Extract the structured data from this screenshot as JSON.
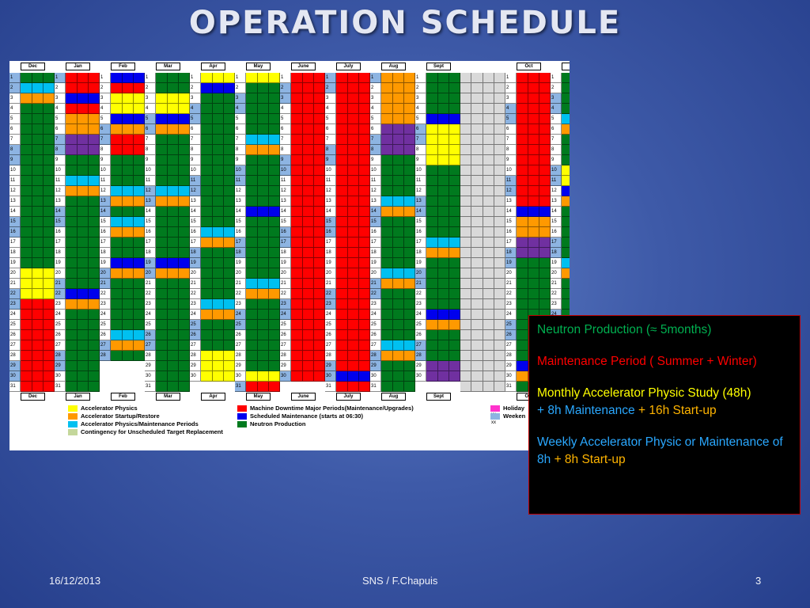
{
  "slide": {
    "title": "OPERATION SCHEDULE",
    "footer_date": "16/12/2013",
    "footer_center": "SNS / F.Chapuis",
    "page_number": "3"
  },
  "schedule": {
    "months_top": [
      "Dec",
      "Jan",
      "Feb",
      "Mar",
      "Apr",
      "May",
      "June",
      "July",
      "Aug",
      "Sept",
      "",
      "Oct",
      "Nov"
    ],
    "months_bottom": [
      "Dec",
      "Jan",
      "Feb",
      "Mar",
      "Apr",
      "May",
      "June",
      "July",
      "Aug",
      "Sept",
      "",
      "Oct",
      "Nov"
    ],
    "month_days": [
      31,
      31,
      28,
      31,
      30,
      31,
      30,
      31,
      31,
      30,
      0,
      31,
      30
    ],
    "colors": {
      "P": "#007a1e",
      "R": "#ff0000",
      "Y": "#ffff00",
      "O": "#ff9900",
      "C": "#00c0f0",
      "B": "#0000ee",
      "V": "#7030a0",
      "H": "#ff33cc",
      "W": "#8db4e2",
      "N": "#ffffff",
      "K": "#c4d79b",
      "G": "#d9d9d9"
    },
    "overrides": [
      "0:2:C",
      "0:3:O",
      "0:20:Y",
      "0:21:Y",
      "0:22:Y",
      "0:23:R",
      "0:24:R",
      "0:25:R",
      "0:26:R",
      "0:27:R",
      "0:28:R",
      "0:29:R",
      "0:30:R",
      "0:31:R",
      "1:1:R",
      "1:2:R",
      "1:3:B",
      "1:4:R",
      "1:5:O",
      "1:6:O",
      "1:7:V",
      "1:8:V",
      "1:11:C",
      "1:12:O",
      "1:22:B",
      "1:23:O",
      "2:1:B",
      "2:2:R",
      "2:3:Y",
      "2:4:Y",
      "2:5:B",
      "2:6:O",
      "2:7:R",
      "2:8:R",
      "2:12:C",
      "2:13:O",
      "2:15:C",
      "2:16:O",
      "2:19:B",
      "2:20:O",
      "2:26:C",
      "2:27:O",
      "3:3:Y",
      "3:4:Y",
      "3:5:B",
      "3:6:O",
      "3:12:C",
      "3:13:O",
      "3:19:B",
      "3:20:O",
      "4:1:Y",
      "4:2:B",
      "4:16:C",
      "4:17:O",
      "4:23:C",
      "4:24:O",
      "4:28:Y",
      "4:29:Y",
      "4:30:Y",
      "5:1:Y",
      "5:7:C",
      "5:8:O",
      "5:14:B",
      "5:21:C",
      "5:22:O",
      "5:30:Y",
      "5:31:R",
      "6:1:R",
      "6:2:R",
      "6:3:R",
      "6:4:R",
      "6:5:R",
      "6:6:R",
      "6:7:R",
      "6:8:R",
      "6:9:R",
      "6:10:R",
      "6:11:R",
      "6:12:R",
      "6:13:R",
      "6:14:R",
      "6:15:R",
      "6:16:R",
      "6:17:R",
      "6:18:R",
      "6:19:R",
      "6:20:R",
      "6:21:R",
      "6:22:R",
      "6:23:R",
      "6:24:R",
      "6:25:R",
      "6:26:R",
      "6:27:R",
      "6:28:R",
      "6:29:R",
      "6:30:R",
      "7:1:R",
      "7:2:R",
      "7:3:R",
      "7:4:R",
      "7:5:R",
      "7:6:R",
      "7:7:R",
      "7:8:R",
      "7:9:R",
      "7:10:R",
      "7:11:R",
      "7:12:R",
      "7:13:R",
      "7:14:R",
      "7:15:R",
      "7:16:R",
      "7:17:R",
      "7:18:R",
      "7:19:R",
      "7:20:R",
      "7:21:R",
      "7:22:R",
      "7:23:R",
      "7:24:R",
      "7:25:R",
      "7:26:R",
      "7:27:R",
      "7:28:R",
      "7:29:R",
      "7:30:B",
      "7:31:R",
      "8:1:O",
      "8:2:O",
      "8:3:O",
      "8:4:O",
      "8:5:O",
      "8:6:V",
      "8:7:V",
      "8:8:V",
      "8:13:C",
      "8:14:O",
      "8:20:C",
      "8:21:O",
      "8:27:C",
      "8:28:O",
      "9:5:B",
      "9:6:Y",
      "9:7:Y",
      "9:8:Y",
      "9:9:Y",
      "9:17:C",
      "9:18:O",
      "9:24:B",
      "9:25:O",
      "9:29:V",
      "9:30:V",
      "11:1:R",
      "11:2:R",
      "11:3:R",
      "11:4:R",
      "11:5:R",
      "11:6:R",
      "11:7:R",
      "11:8:R",
      "11:9:R",
      "11:10:R",
      "11:11:R",
      "11:12:R",
      "11:13:R",
      "11:14:B",
      "11:15:O",
      "11:16:O",
      "11:17:V",
      "11:18:V",
      "11:29:B",
      "11:30:O",
      "12:5:C",
      "12:6:O",
      "12:10:Y",
      "12:11:Y",
      "12:12:B",
      "12:13:O",
      "12:19:C",
      "12:20:O"
    ],
    "legend": [
      {
        "color": "Y",
        "label": "Accelerator Physics"
      },
      {
        "color": "O",
        "label": "Accelerator Startup/Restore"
      },
      {
        "color": "C",
        "label": "Accelerator Physics/Maintenance Periods"
      },
      {
        "color": "K",
        "label": "Contingency for Unscheduled Target Replacement"
      },
      {
        "color": "R",
        "label": "Machine Downtime Major Periods(Maintenance/Upgrades)"
      },
      {
        "color": "B",
        "label": "Scheduled Maintenance (starts at 06:30)"
      },
      {
        "color": "P",
        "label": "Neutron Production"
      },
      {
        "color": "H",
        "label": "Holiday",
        "mark": "xx"
      },
      {
        "color": "W",
        "label": "Weeken",
        "mark": "xx"
      }
    ]
  },
  "info_box": {
    "line1": "Neutron Production (≈ 5months)",
    "line2": "Maintenance Period ( Summer + Winter)",
    "line3a": "Monthly Accelerator Physic Study (48h)",
    "line3b": "+ 8h Maintenance",
    "line3c": "+ 16h Start-up",
    "line4a": "Weekly Accelerator  Physic or Maintenance of 8h",
    "line4b": "+ 8h Start-up"
  }
}
